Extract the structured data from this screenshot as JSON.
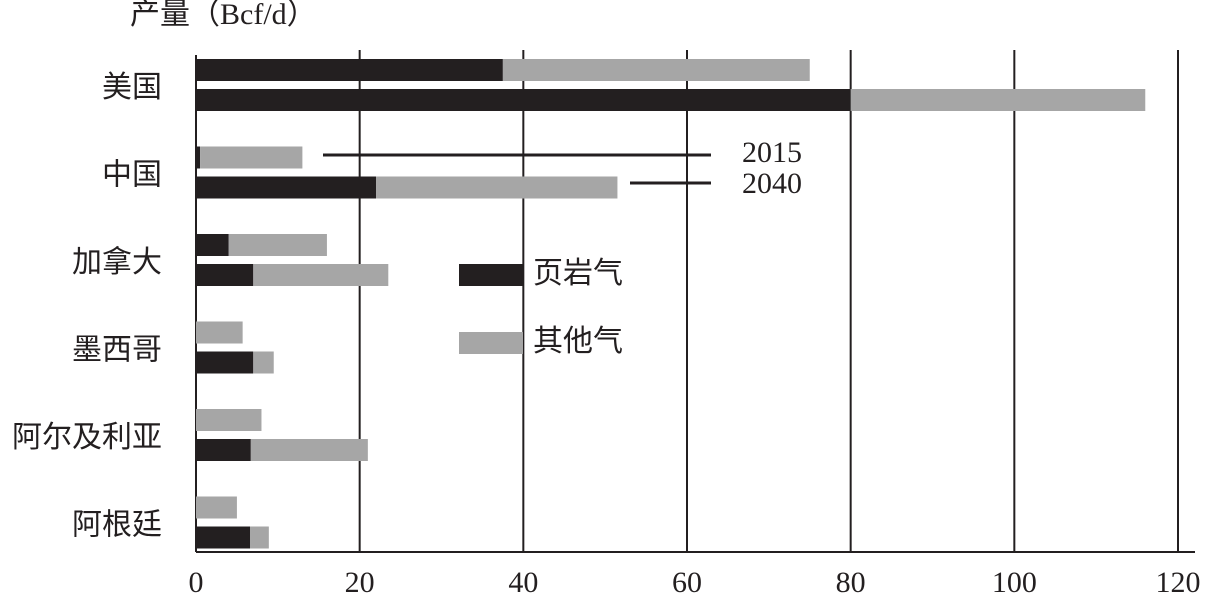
{
  "chart_data": {
    "type": "bar",
    "orientation": "horizontal",
    "stacked": true,
    "x_label": "产量（Bcf/d）",
    "categories": [
      "美国",
      "中国",
      "加拿大",
      "墨西哥",
      "阿尔及利亚",
      "阿根廷"
    ],
    "years": [
      "2015",
      "2040"
    ],
    "series": [
      {
        "name": "页岩气",
        "color": "#231f20",
        "values": [
          [
            37.5,
            0.5,
            4,
            0,
            0,
            0
          ],
          [
            80,
            22,
            7,
            7,
            6.7,
            6.6
          ]
        ]
      },
      {
        "name": "其他气",
        "color": "#a6a6a6",
        "values": [
          [
            37.5,
            12.5,
            12,
            5.7,
            8,
            5
          ],
          [
            36,
            29.5,
            16.5,
            2.5,
            14.3,
            2.3
          ]
        ]
      }
    ],
    "xlim": [
      0,
      120
    ],
    "xticks": [
      0,
      20,
      40,
      60,
      80,
      100,
      120
    ],
    "grid": true
  }
}
